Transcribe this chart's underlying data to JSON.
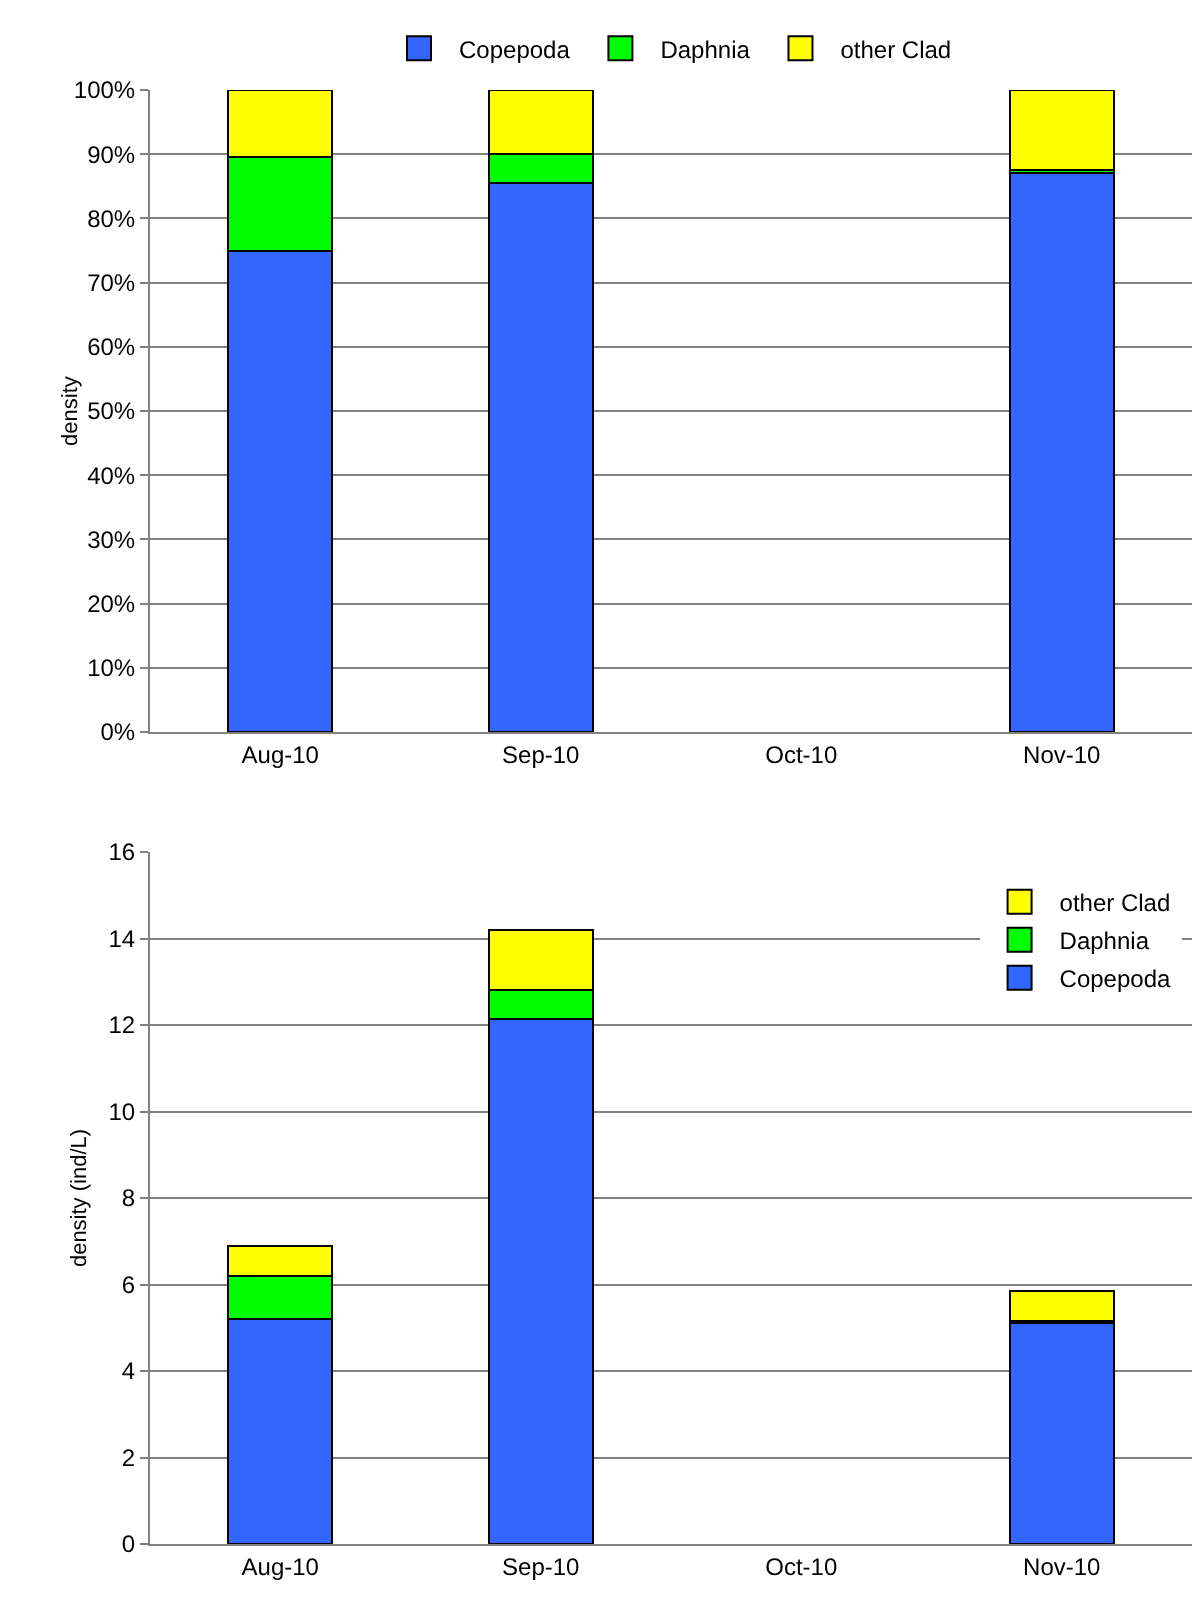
{
  "chart_data": [
    {
      "type": "bar",
      "stacked": true,
      "ylabel": "density",
      "categories": [
        "Aug-10",
        "Sep-10",
        "Oct-10",
        "Nov-10"
      ],
      "series": [
        {
          "name": "Copepoda",
          "color": "#3366ff",
          "values": [
            75,
            85.5,
            null,
            87
          ]
        },
        {
          "name": "Daphnia",
          "color": "#00ff00",
          "values": [
            14.5,
            4.5,
            null,
            0.5
          ]
        },
        {
          "name": "other Clad",
          "color": "#ffff00",
          "values": [
            10.5,
            10,
            null,
            12.5
          ]
        }
      ],
      "ylim": [
        0,
        100
      ],
      "yticks": [
        {
          "value": 0,
          "label": "0%"
        },
        {
          "value": 10,
          "label": "10%"
        },
        {
          "value": 20,
          "label": "20%"
        },
        {
          "value": 30,
          "label": "30%"
        },
        {
          "value": 40,
          "label": "40%"
        },
        {
          "value": 50,
          "label": "50%"
        },
        {
          "value": 60,
          "label": "60%"
        },
        {
          "value": 70,
          "label": "70%"
        },
        {
          "value": 80,
          "label": "80%"
        },
        {
          "value": 90,
          "label": "90%"
        },
        {
          "value": 100,
          "label": "100%"
        }
      ],
      "grid": "y",
      "legend": "top"
    },
    {
      "type": "bar",
      "stacked": true,
      "ylabel": "density (ind/L)",
      "categories": [
        "Aug-10",
        "Sep-10",
        "Oct-10",
        "Nov-10"
      ],
      "series": [
        {
          "name": "Copepoda",
          "color": "#3366ff",
          "values": [
            5.2,
            12.15,
            null,
            5.1
          ]
        },
        {
          "name": "Daphnia",
          "color": "#00ff00",
          "values": [
            1.0,
            0.65,
            null,
            0.05
          ]
        },
        {
          "name": "other Clad",
          "color": "#ffff00",
          "values": [
            0.7,
            1.4,
            null,
            0.7
          ]
        }
      ],
      "ylim": [
        0,
        16
      ],
      "yticks": [
        0,
        2,
        4,
        6,
        8,
        10,
        12,
        14,
        16
      ],
      "grid": "y",
      "legend": "top right"
    }
  ]
}
